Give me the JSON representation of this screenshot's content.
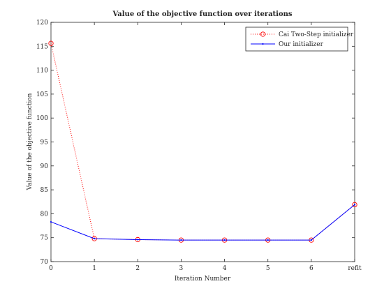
{
  "chart_data": {
    "type": "line",
    "title": "Value of the objective function over iterations",
    "xlabel": "Iteration Number",
    "ylabel": "Value of the objective function",
    "x_tick_labels": [
      "0",
      "1",
      "2",
      "3",
      "4",
      "5",
      "6",
      "refit"
    ],
    "x": [
      0,
      1,
      2,
      3,
      4,
      5,
      6,
      7
    ],
    "xlim": [
      0,
      7
    ],
    "ylim": [
      70,
      120
    ],
    "y_ticks": [
      70,
      75,
      80,
      85,
      90,
      95,
      100,
      105,
      110,
      115,
      120
    ],
    "grid": false,
    "legend_position": "top-right",
    "series": [
      {
        "name": "Cai Two-Step initializer",
        "color": "#ff0000",
        "line_style": "dotted",
        "marker": "circle",
        "values": [
          115.6,
          74.8,
          74.6,
          74.5,
          74.5,
          74.5,
          74.5,
          81.9
        ]
      },
      {
        "name": "Our initializer",
        "color": "#0000ff",
        "line_style": "solid",
        "marker": "point",
        "values": [
          78.3,
          74.8,
          74.6,
          74.5,
          74.5,
          74.5,
          74.5,
          81.9
        ]
      }
    ]
  }
}
